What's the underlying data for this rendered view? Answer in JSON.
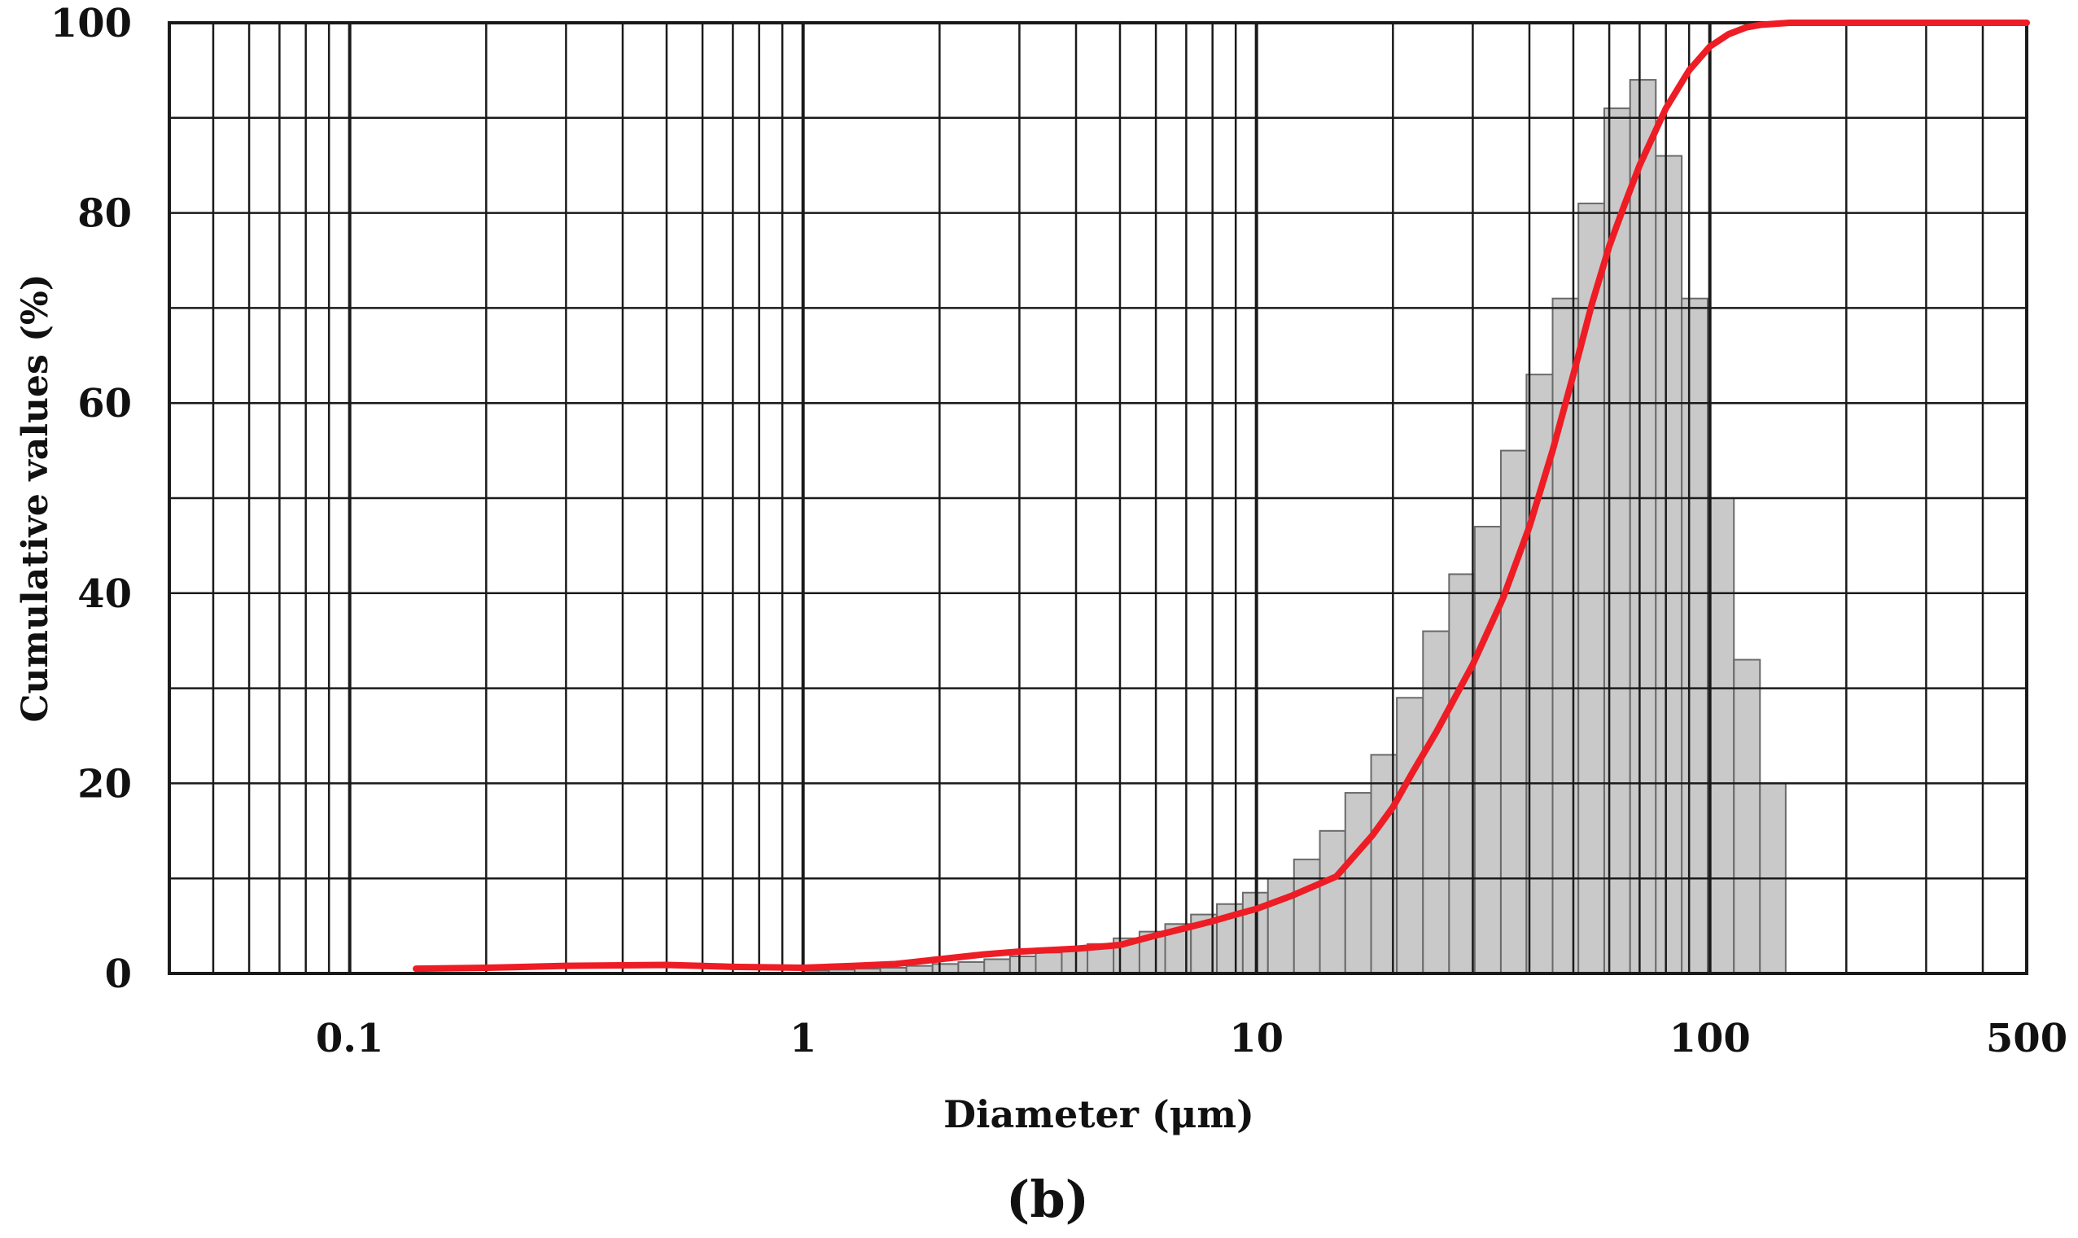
{
  "chart_data": {
    "type": "bar",
    "xscale": "log",
    "xlim": [
      0.04,
      500
    ],
    "ylim": [
      0,
      100
    ],
    "xlabel": "Diameter (μm)",
    "ylabel": "Cumulative values (%)",
    "panel_label": "(b)",
    "grid": true,
    "xticks": [
      {
        "value": 0.1,
        "label": "0.1"
      },
      {
        "value": 1,
        "label": "1"
      },
      {
        "value": 10,
        "label": "10"
      },
      {
        "value": 100,
        "label": "100"
      },
      {
        "value": 500,
        "label": "500"
      }
    ],
    "yticks": [
      {
        "value": 0,
        "label": "0"
      },
      {
        "value": 20,
        "label": "20"
      },
      {
        "value": 40,
        "label": "40"
      },
      {
        "value": 60,
        "label": "60"
      },
      {
        "value": 80,
        "label": "80"
      },
      {
        "value": 100,
        "label": "100"
      }
    ],
    "colors": {
      "curve": "#ee1c24",
      "bar_fill": "#c9c9c9",
      "bar_stroke": "#6a6a6a",
      "grid": "#1a1a1a"
    },
    "histogram": {
      "bin_edges": [
        1.0,
        1.14,
        1.3,
        1.48,
        1.69,
        1.93,
        2.2,
        2.51,
        2.86,
        3.26,
        3.72,
        4.24,
        4.84,
        5.52,
        6.29,
        7.17,
        8.18,
        9.33,
        10.6,
        12.1,
        13.8,
        15.7,
        17.9,
        20.4,
        23.3,
        26.6,
        30.3,
        34.6,
        39.4,
        45.0,
        51.3,
        58.5,
        66.7,
        76.0,
        86.7,
        98.9,
        113,
        129,
        147
      ],
      "values": [
        0.3,
        0.4,
        0.5,
        0.6,
        0.8,
        1.0,
        1.2,
        1.5,
        1.8,
        2.2,
        2.6,
        3.1,
        3.7,
        4.4,
        5.2,
        6.2,
        7.3,
        8.5,
        10.0,
        12.0,
        15.0,
        19.0,
        23.0,
        29.0,
        36.0,
        42.0,
        47.0,
        55.0,
        63.0,
        71.0,
        81.0,
        91.0,
        94.0,
        86.0,
        71.0,
        50.0,
        33.0,
        20.0,
        1.0
      ]
    },
    "series": [
      {
        "x": [
          0.14,
          0.2,
          0.3,
          0.5,
          0.7,
          1.0,
          1.3,
          1.6,
          2.0,
          2.5,
          3.0,
          4.0,
          5.0,
          6.0,
          7.0,
          8.0,
          9.0,
          10.0,
          12.0,
          15.0,
          18.0,
          20.0,
          22.0,
          25.0,
          30.0,
          35.0,
          40.0,
          45.0,
          50.0,
          55.0,
          60.0,
          65.0,
          70.0,
          80.0,
          90.0,
          100.0,
          110.0,
          120.0,
          130.0,
          150.0,
          200.0,
          300.0,
          500.0
        ],
        "y": [
          0.5,
          0.6,
          0.8,
          0.9,
          0.7,
          0.6,
          0.8,
          1.0,
          1.5,
          2.0,
          2.3,
          2.6,
          3.0,
          4.0,
          4.8,
          5.5,
          6.2,
          6.8,
          8.2,
          10.2,
          14.5,
          17.5,
          21.0,
          25.5,
          32.5,
          39.5,
          47.0,
          55.0,
          63.0,
          70.5,
          76.5,
          81.0,
          85.0,
          91.0,
          95.0,
          97.5,
          98.8,
          99.5,
          99.8,
          100.0,
          100.0,
          100.0,
          100.0
        ]
      }
    ]
  }
}
